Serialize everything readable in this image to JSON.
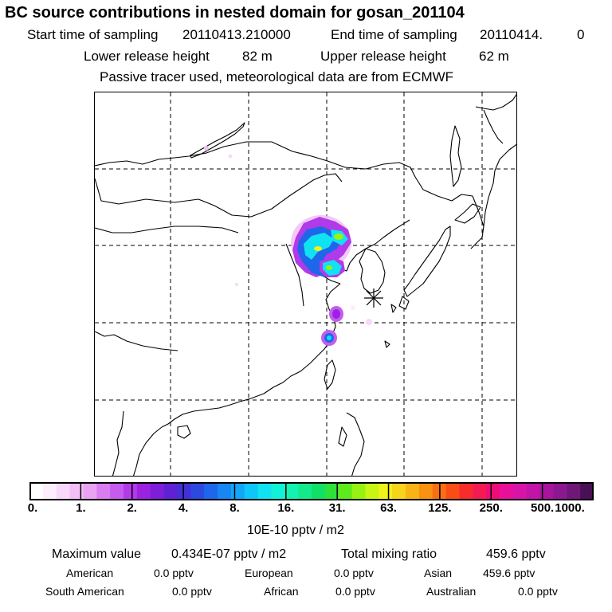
{
  "header": {
    "title": "BC  source contributions in nested domain for gosan_201104",
    "start_label": "Start time of sampling",
    "start_value": "20110413.210000",
    "end_label": "End time of sampling",
    "end_value": "20110414.",
    "end_value2": "0",
    "lower_label": "Lower release height",
    "lower_value": "82 m",
    "upper_label": "Upper release height",
    "upper_value": "62 m",
    "tracer_note": "Passive tracer used, meteorological data are from ECMWF"
  },
  "chart_data": {
    "type": "heatmap",
    "title": "BC  source contributions in nested domain for gosan_201104",
    "colorbar": {
      "ticks": [
        "0.",
        "1.",
        "2.",
        "4.",
        "8.",
        "16.",
        "31.",
        "63.",
        "125.",
        "250.",
        "500.",
        "1000."
      ],
      "unit": "10E-10 pptv / m2",
      "colors": [
        "#ffffff",
        "#fdeefe",
        "#f8d8fb",
        "#f2bff7",
        "#eaa3f3",
        "#d97ef0",
        "#c55cee",
        "#b13ae9",
        "#9b22e0",
        "#7f1ed8",
        "#5e22d4",
        "#4230d8",
        "#2c4ae0",
        "#1e66ea",
        "#1886f2",
        "#12a6f7",
        "#0fc6f8",
        "#10e2f2",
        "#12f2d8",
        "#14f2b2",
        "#12ea8c",
        "#10e066",
        "#2ee03a",
        "#5eea1c",
        "#96f212",
        "#c8f614",
        "#f0f21a",
        "#f8d41a",
        "#f8b414",
        "#f89212",
        "#f87012",
        "#f84e16",
        "#f82c2a",
        "#f61a52",
        "#f00c78",
        "#e8109a",
        "#d814a8",
        "#c214a6",
        "#a8149e",
        "#8c1890",
        "#701878",
        "#4a1055"
      ]
    },
    "receptor_marker": "star",
    "max_value_label": "Maximum value",
    "max_value": "0.434E-07 pptv / m2",
    "total_label": "Total mixing ratio",
    "total_value": "459.6 pptv"
  },
  "regions": [
    {
      "name": "American",
      "value": "0.0 pptv"
    },
    {
      "name": "European",
      "value": "0.0 pptv"
    },
    {
      "name": "Asian",
      "value": "459.6 pptv"
    },
    {
      "name": "South American",
      "value": "0.0 pptv"
    },
    {
      "name": "African",
      "value": "0.0 pptv"
    },
    {
      "name": "Australian",
      "value": "0.0 pptv"
    }
  ]
}
